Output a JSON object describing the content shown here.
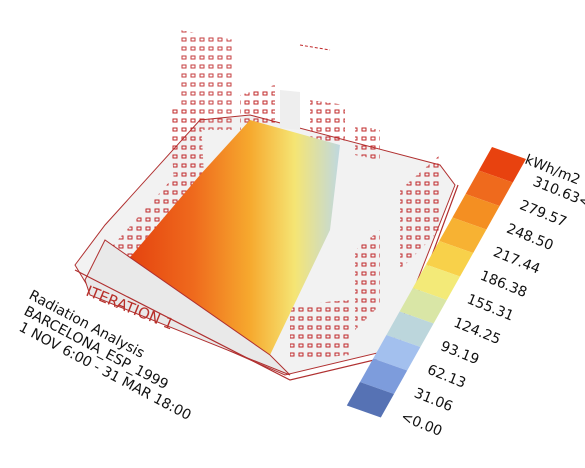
{
  "scene": {
    "iteration_label": "ITERATION 1",
    "info": [
      "Radiation Analysis",
      "BARCELONA_ESP_1999",
      "1 NOV 6:00 - 31 MAR 18:00"
    ]
  },
  "legend": {
    "unit": "kWh/m2",
    "labels": [
      "310.63<",
      "279.57",
      "248.50",
      "217.44",
      "186.38",
      "155.31",
      "124.25",
      "93.19",
      "62.13",
      "31.06",
      "<0.00"
    ],
    "colors": [
      "#e8420f",
      "#ef6a1d",
      "#f48f22",
      "#f7b233",
      "#f8d14a",
      "#f3ea78",
      "#d9e6a6",
      "#bcd6dc",
      "#a3c0ee",
      "#7d9cdc",
      "#5672b4"
    ]
  }
}
